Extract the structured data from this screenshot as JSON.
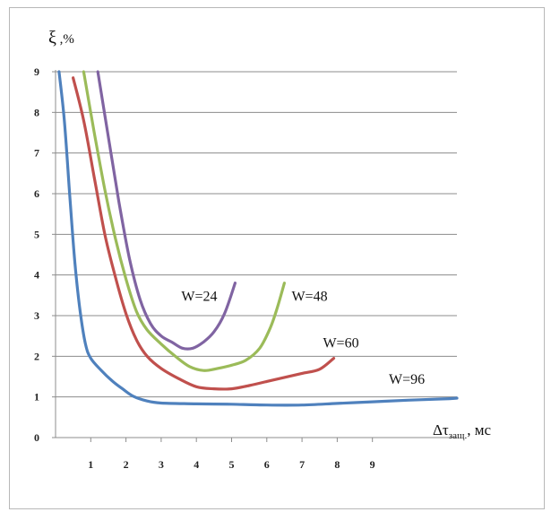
{
  "chart_data": {
    "type": "line",
    "ylabel_sym": "ξ",
    "ylabel_unit": " ,%",
    "xlabel_main": "Δτ",
    "xlabel_sub": "защ.",
    "xlabel_unit": ", мс",
    "ylim": [
      0,
      9
    ],
    "xlim": [
      0,
      11.4
    ],
    "yticks": [
      "0",
      "1",
      "2",
      "3",
      "4",
      "5",
      "6",
      "7",
      "8",
      "9"
    ],
    "xticks": [
      "1",
      "2",
      "3",
      "4",
      "5",
      "6",
      "7",
      "8",
      "9"
    ],
    "grid": "horizontal",
    "series": [
      {
        "name": "W=24",
        "color": "#8064a2",
        "points": [
          [
            1.2,
            9.0
          ],
          [
            1.5,
            7.4
          ],
          [
            1.8,
            5.8
          ],
          [
            2.1,
            4.4
          ],
          [
            2.4,
            3.4
          ],
          [
            2.7,
            2.8
          ],
          [
            3.0,
            2.5
          ],
          [
            3.3,
            2.35
          ],
          [
            3.6,
            2.2
          ],
          [
            3.9,
            2.2
          ],
          [
            4.2,
            2.35
          ],
          [
            4.5,
            2.6
          ],
          [
            4.8,
            3.05
          ],
          [
            5.1,
            3.8
          ]
        ]
      },
      {
        "name": "W=48",
        "color": "#9bbb59",
        "points": [
          [
            0.8,
            9.0
          ],
          [
            1.1,
            7.5
          ],
          [
            1.4,
            6.1
          ],
          [
            1.7,
            4.9
          ],
          [
            2.0,
            3.9
          ],
          [
            2.3,
            3.1
          ],
          [
            2.6,
            2.65
          ],
          [
            3.0,
            2.3
          ],
          [
            3.4,
            2.0
          ],
          [
            3.8,
            1.75
          ],
          [
            4.2,
            1.65
          ],
          [
            4.6,
            1.7
          ],
          [
            5.0,
            1.78
          ],
          [
            5.4,
            1.9
          ],
          [
            5.8,
            2.2
          ],
          [
            6.1,
            2.7
          ],
          [
            6.3,
            3.2
          ],
          [
            6.5,
            3.8
          ]
        ]
      },
      {
        "name": "W=60",
        "color": "#c0504d",
        "points": [
          [
            0.5,
            8.85
          ],
          [
            0.8,
            7.8
          ],
          [
            1.1,
            6.4
          ],
          [
            1.4,
            5.0
          ],
          [
            1.7,
            3.95
          ],
          [
            2.0,
            3.05
          ],
          [
            2.3,
            2.4
          ],
          [
            2.6,
            2.0
          ],
          [
            3.0,
            1.7
          ],
          [
            3.5,
            1.45
          ],
          [
            4.0,
            1.25
          ],
          [
            4.5,
            1.2
          ],
          [
            5.0,
            1.2
          ],
          [
            5.5,
            1.28
          ],
          [
            6.0,
            1.38
          ],
          [
            6.5,
            1.48
          ],
          [
            7.0,
            1.58
          ],
          [
            7.5,
            1.68
          ],
          [
            7.9,
            1.95
          ]
        ]
      },
      {
        "name": "W=96",
        "color": "#4f81bd",
        "points": [
          [
            0.1,
            9.0
          ],
          [
            0.25,
            7.8
          ],
          [
            0.4,
            6.0
          ],
          [
            0.55,
            4.3
          ],
          [
            0.7,
            3.1
          ],
          [
            0.85,
            2.3
          ],
          [
            1.0,
            1.95
          ],
          [
            1.3,
            1.65
          ],
          [
            1.6,
            1.4
          ],
          [
            1.9,
            1.2
          ],
          [
            2.2,
            1.02
          ],
          [
            2.6,
            0.9
          ],
          [
            3.0,
            0.85
          ],
          [
            4.0,
            0.83
          ],
          [
            5.0,
            0.82
          ],
          [
            6.0,
            0.8
          ],
          [
            7.0,
            0.8
          ],
          [
            8.0,
            0.84
          ],
          [
            9.0,
            0.88
          ],
          [
            10.0,
            0.92
          ],
          [
            11.0,
            0.95
          ],
          [
            11.4,
            0.97
          ]
        ]
      }
    ]
  }
}
